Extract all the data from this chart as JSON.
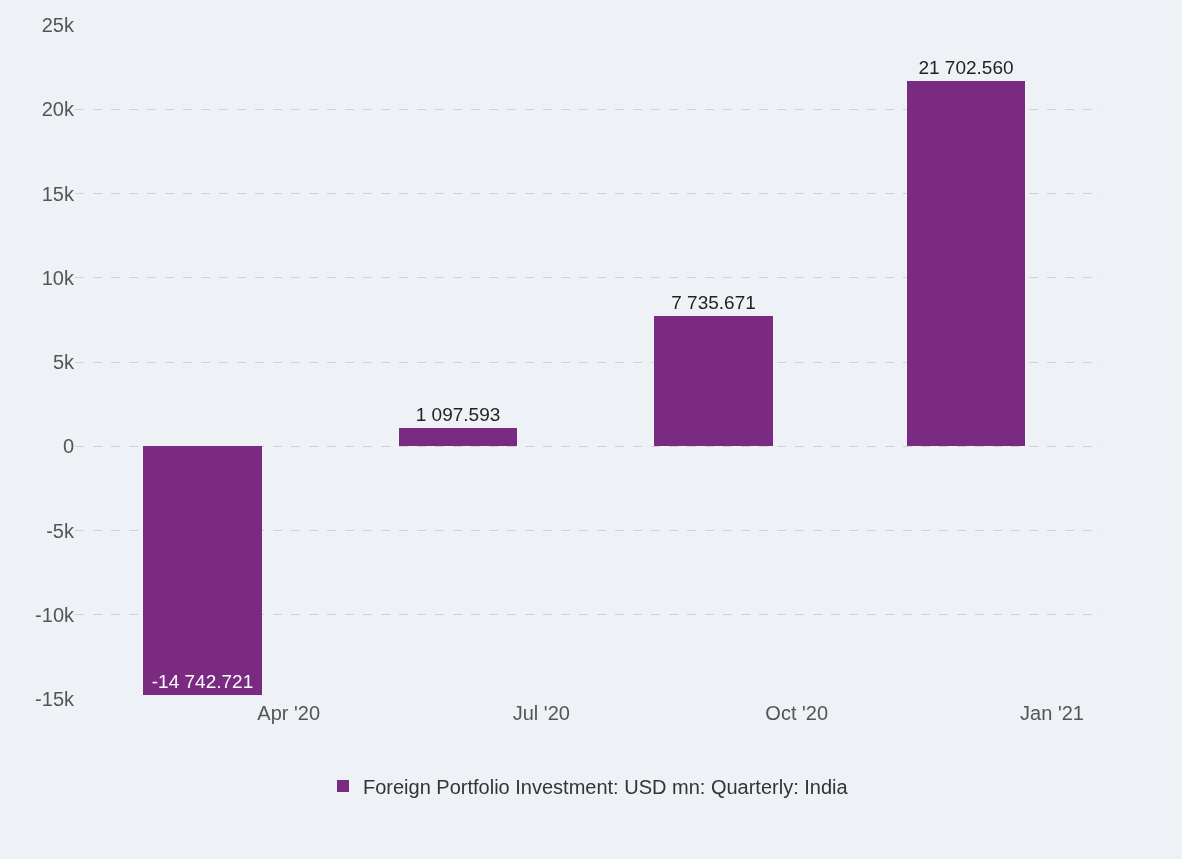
{
  "chart_data": {
    "type": "bar",
    "x": [
      "2020-03",
      "2020-06",
      "2020-09",
      "2020-12"
    ],
    "series": [
      {
        "name": "Foreign Portfolio Investment: USD mn: Quarterly: India",
        "color": "#7b2a82",
        "values": [
          -14742.721,
          1097.593,
          7735.671,
          21702.56
        ],
        "value_labels": [
          "-14 742.721",
          "1 097.593",
          "7 735.671",
          "21 702.560"
        ]
      }
    ],
    "xlim": [
      "2020-01-15",
      "2021-01-19"
    ],
    "xticks": [
      {
        "value": "2020-04-01",
        "label": "Apr '20"
      },
      {
        "value": "2020-07-01",
        "label": "Jul '20"
      },
      {
        "value": "2020-10-01",
        "label": "Oct '20"
      },
      {
        "value": "2021-01-01",
        "label": "Jan '21"
      }
    ],
    "ylim": [
      -15000,
      25000
    ],
    "yticks": [
      {
        "value": -15000,
        "label": "-15k"
      },
      {
        "value": -10000,
        "label": "-10k"
      },
      {
        "value": -5000,
        "label": "-5k"
      },
      0,
      {
        "value": 5000,
        "label": "5k"
      },
      {
        "value": 10000,
        "label": "10k"
      },
      {
        "value": 15000,
        "label": "15k"
      },
      {
        "value": 20000,
        "label": "20k"
      },
      {
        "value": 25000,
        "label": "25k"
      }
    ],
    "grid": "y",
    "legend": "bottom"
  }
}
